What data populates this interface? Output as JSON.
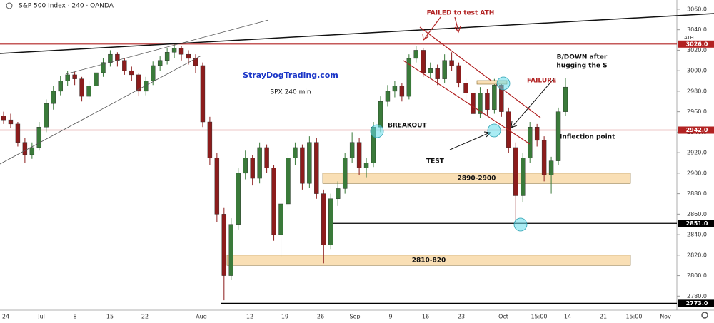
{
  "header": "S&P 500 Index · 240 · OANDA",
  "chart_data": {
    "type": "candlestick",
    "up_color": "#3a7a3a",
    "down_color": "#8c1c1c",
    "ylim": [
      2767,
      3069
    ],
    "yticks": [
      {
        "value": 2780,
        "label": "2780.0"
      },
      {
        "value": 2800,
        "label": "2800.0"
      },
      {
        "value": 2820,
        "label": "2820.0"
      },
      {
        "value": 2840,
        "label": "2840.0"
      },
      {
        "value": 2860,
        "label": "2860.0"
      },
      {
        "value": 2880,
        "label": "2880.0"
      },
      {
        "value": 2900,
        "label": "2900.0"
      },
      {
        "value": 2920,
        "label": "2920.0"
      },
      {
        "value": 2940,
        "label": "2940.0"
      },
      {
        "value": 2960,
        "label": "2960.0"
      },
      {
        "value": 2980,
        "label": "2980.0"
      },
      {
        "value": 3000,
        "label": "3000.0"
      },
      {
        "value": 3020,
        "label": "3020.0"
      },
      {
        "value": 3040,
        "label": "3040.0"
      },
      {
        "value": 3060,
        "label": "3060.0"
      }
    ],
    "xticks": [
      "24",
      "Jul",
      "8",
      "15",
      "22",
      "Aug",
      "12",
      "19",
      "26",
      "Sep",
      "9",
      "16",
      "23",
      "Oct",
      "15:00",
      "14",
      "21",
      "15:00",
      "Nov"
    ],
    "candles": [
      [
        2956,
        2960,
        2948,
        2952
      ],
      [
        2952,
        2958,
        2944,
        2948
      ],
      [
        2948,
        2950,
        2926,
        2930
      ],
      [
        2930,
        2934,
        2910,
        2918
      ],
      [
        2918,
        2930,
        2914,
        2925
      ],
      [
        2925,
        2950,
        2922,
        2945
      ],
      [
        2945,
        2972,
        2940,
        2968
      ],
      [
        2968,
        2985,
        2962,
        2980
      ],
      [
        2980,
        2995,
        2976,
        2990
      ],
      [
        2990,
        3000,
        2985,
        2996
      ],
      [
        2996,
        2999,
        2986,
        2992
      ],
      [
        2992,
        2994,
        2970,
        2975
      ],
      [
        2975,
        2990,
        2972,
        2985
      ],
      [
        2985,
        3002,
        2980,
        2998
      ],
      [
        2998,
        3012,
        2994,
        3008
      ],
      [
        3008,
        3020,
        3004,
        3016
      ],
      [
        3016,
        3018,
        3004,
        3010
      ],
      [
        3010,
        3012,
        2996,
        3000
      ],
      [
        3000,
        3004,
        2990,
        2996
      ],
      [
        2996,
        2998,
        2975,
        2980
      ],
      [
        2980,
        2994,
        2976,
        2990
      ],
      [
        2990,
        3009,
        2986,
        3005
      ],
      [
        3005,
        3014,
        3000,
        3010
      ],
      [
        3010,
        3022,
        3006,
        3018
      ],
      [
        3018,
        3026,
        3012,
        3022
      ],
      [
        3022,
        3024,
        3010,
        3016
      ],
      [
        3016,
        3020,
        3006,
        3012
      ],
      [
        3012,
        3016,
        2998,
        3005
      ],
      [
        3005,
        3008,
        2945,
        2950
      ],
      [
        2950,
        2955,
        2908,
        2915
      ],
      [
        2915,
        2920,
        2852,
        2860
      ],
      [
        2860,
        2866,
        2776,
        2800
      ],
      [
        2800,
        2856,
        2796,
        2850
      ],
      [
        2850,
        2905,
        2845,
        2900
      ],
      [
        2900,
        2922,
        2894,
        2915
      ],
      [
        2915,
        2918,
        2888,
        2895
      ],
      [
        2895,
        2930,
        2890,
        2925
      ],
      [
        2925,
        2928,
        2900,
        2905
      ],
      [
        2905,
        2908,
        2834,
        2840
      ],
      [
        2840,
        2876,
        2818,
        2870
      ],
      [
        2870,
        2920,
        2865,
        2915
      ],
      [
        2915,
        2930,
        2908,
        2925
      ],
      [
        2925,
        2928,
        2884,
        2890
      ],
      [
        2890,
        2936,
        2886,
        2930
      ],
      [
        2930,
        2934,
        2875,
        2880
      ],
      [
        2880,
        2884,
        2812,
        2830
      ],
      [
        2830,
        2880,
        2826,
        2875
      ],
      [
        2875,
        2892,
        2868,
        2885
      ],
      [
        2885,
        2920,
        2880,
        2915
      ],
      [
        2915,
        2940,
        2910,
        2930
      ],
      [
        2930,
        2934,
        2898,
        2905
      ],
      [
        2905,
        2915,
        2896,
        2910
      ],
      [
        2910,
        2950,
        2906,
        2945
      ],
      [
        2945,
        2975,
        2940,
        2970
      ],
      [
        2970,
        2986,
        2965,
        2980
      ],
      [
        2980,
        2990,
        2974,
        2985
      ],
      [
        2985,
        2988,
        2970,
        2975
      ],
      [
        2975,
        3016,
        2972,
        3012
      ],
      [
        3012,
        3024,
        3008,
        3020
      ],
      [
        3020,
        3022,
        2994,
        2998
      ],
      [
        2998,
        3008,
        2992,
        3002
      ],
      [
        3002,
        3006,
        2986,
        2992
      ],
      [
        2992,
        3016,
        2988,
        3010
      ],
      [
        3010,
        3018,
        3000,
        3005
      ],
      [
        3005,
        3008,
        2984,
        2988
      ],
      [
        2988,
        2992,
        2972,
        2978
      ],
      [
        2978,
        2982,
        2952,
        2958
      ],
      [
        2958,
        2984,
        2954,
        2978
      ],
      [
        2978,
        2982,
        2956,
        2962
      ],
      [
        2962,
        2992,
        2958,
        2986
      ],
      [
        2986,
        2990,
        2955,
        2960
      ],
      [
        2960,
        2964,
        2920,
        2925
      ],
      [
        2925,
        2930,
        2852,
        2878
      ],
      [
        2878,
        2920,
        2872,
        2915
      ],
      [
        2915,
        2950,
        2910,
        2945
      ],
      [
        2945,
        2948,
        2926,
        2932
      ],
      [
        2932,
        2936,
        2892,
        2898
      ],
      [
        2898,
        2916,
        2880,
        2912
      ],
      [
        2912,
        2964,
        2908,
        2960
      ],
      [
        2960,
        2993,
        2956,
        2984
      ]
    ],
    "levels": [
      {
        "value": 3026,
        "label": "3026.0",
        "color": "#b22222",
        "note": "ATH"
      },
      {
        "value": 2942,
        "label": "2942.0",
        "color": "#b22222"
      },
      {
        "value": 2851,
        "label": "2851.0",
        "color": "#000000"
      },
      {
        "value": 2773,
        "label": "2773.0",
        "color": "#000000"
      }
    ],
    "zones": [
      {
        "low": 2890,
        "high": 2900,
        "label": "2890-2900"
      },
      {
        "low": 2810,
        "high": 2820,
        "label": "2810-820"
      }
    ],
    "annotations": {
      "site": "StrayDogTrading.com",
      "subtitle": "SPX 240 min",
      "failed": "FAILED to test ATH",
      "breakdown": [
        "B/DOWN after",
        "hugging the S"
      ],
      "failure": "FAILURE",
      "breakout": "BREAKOUT",
      "test": "TEST",
      "inflection": "Inflection point"
    }
  }
}
